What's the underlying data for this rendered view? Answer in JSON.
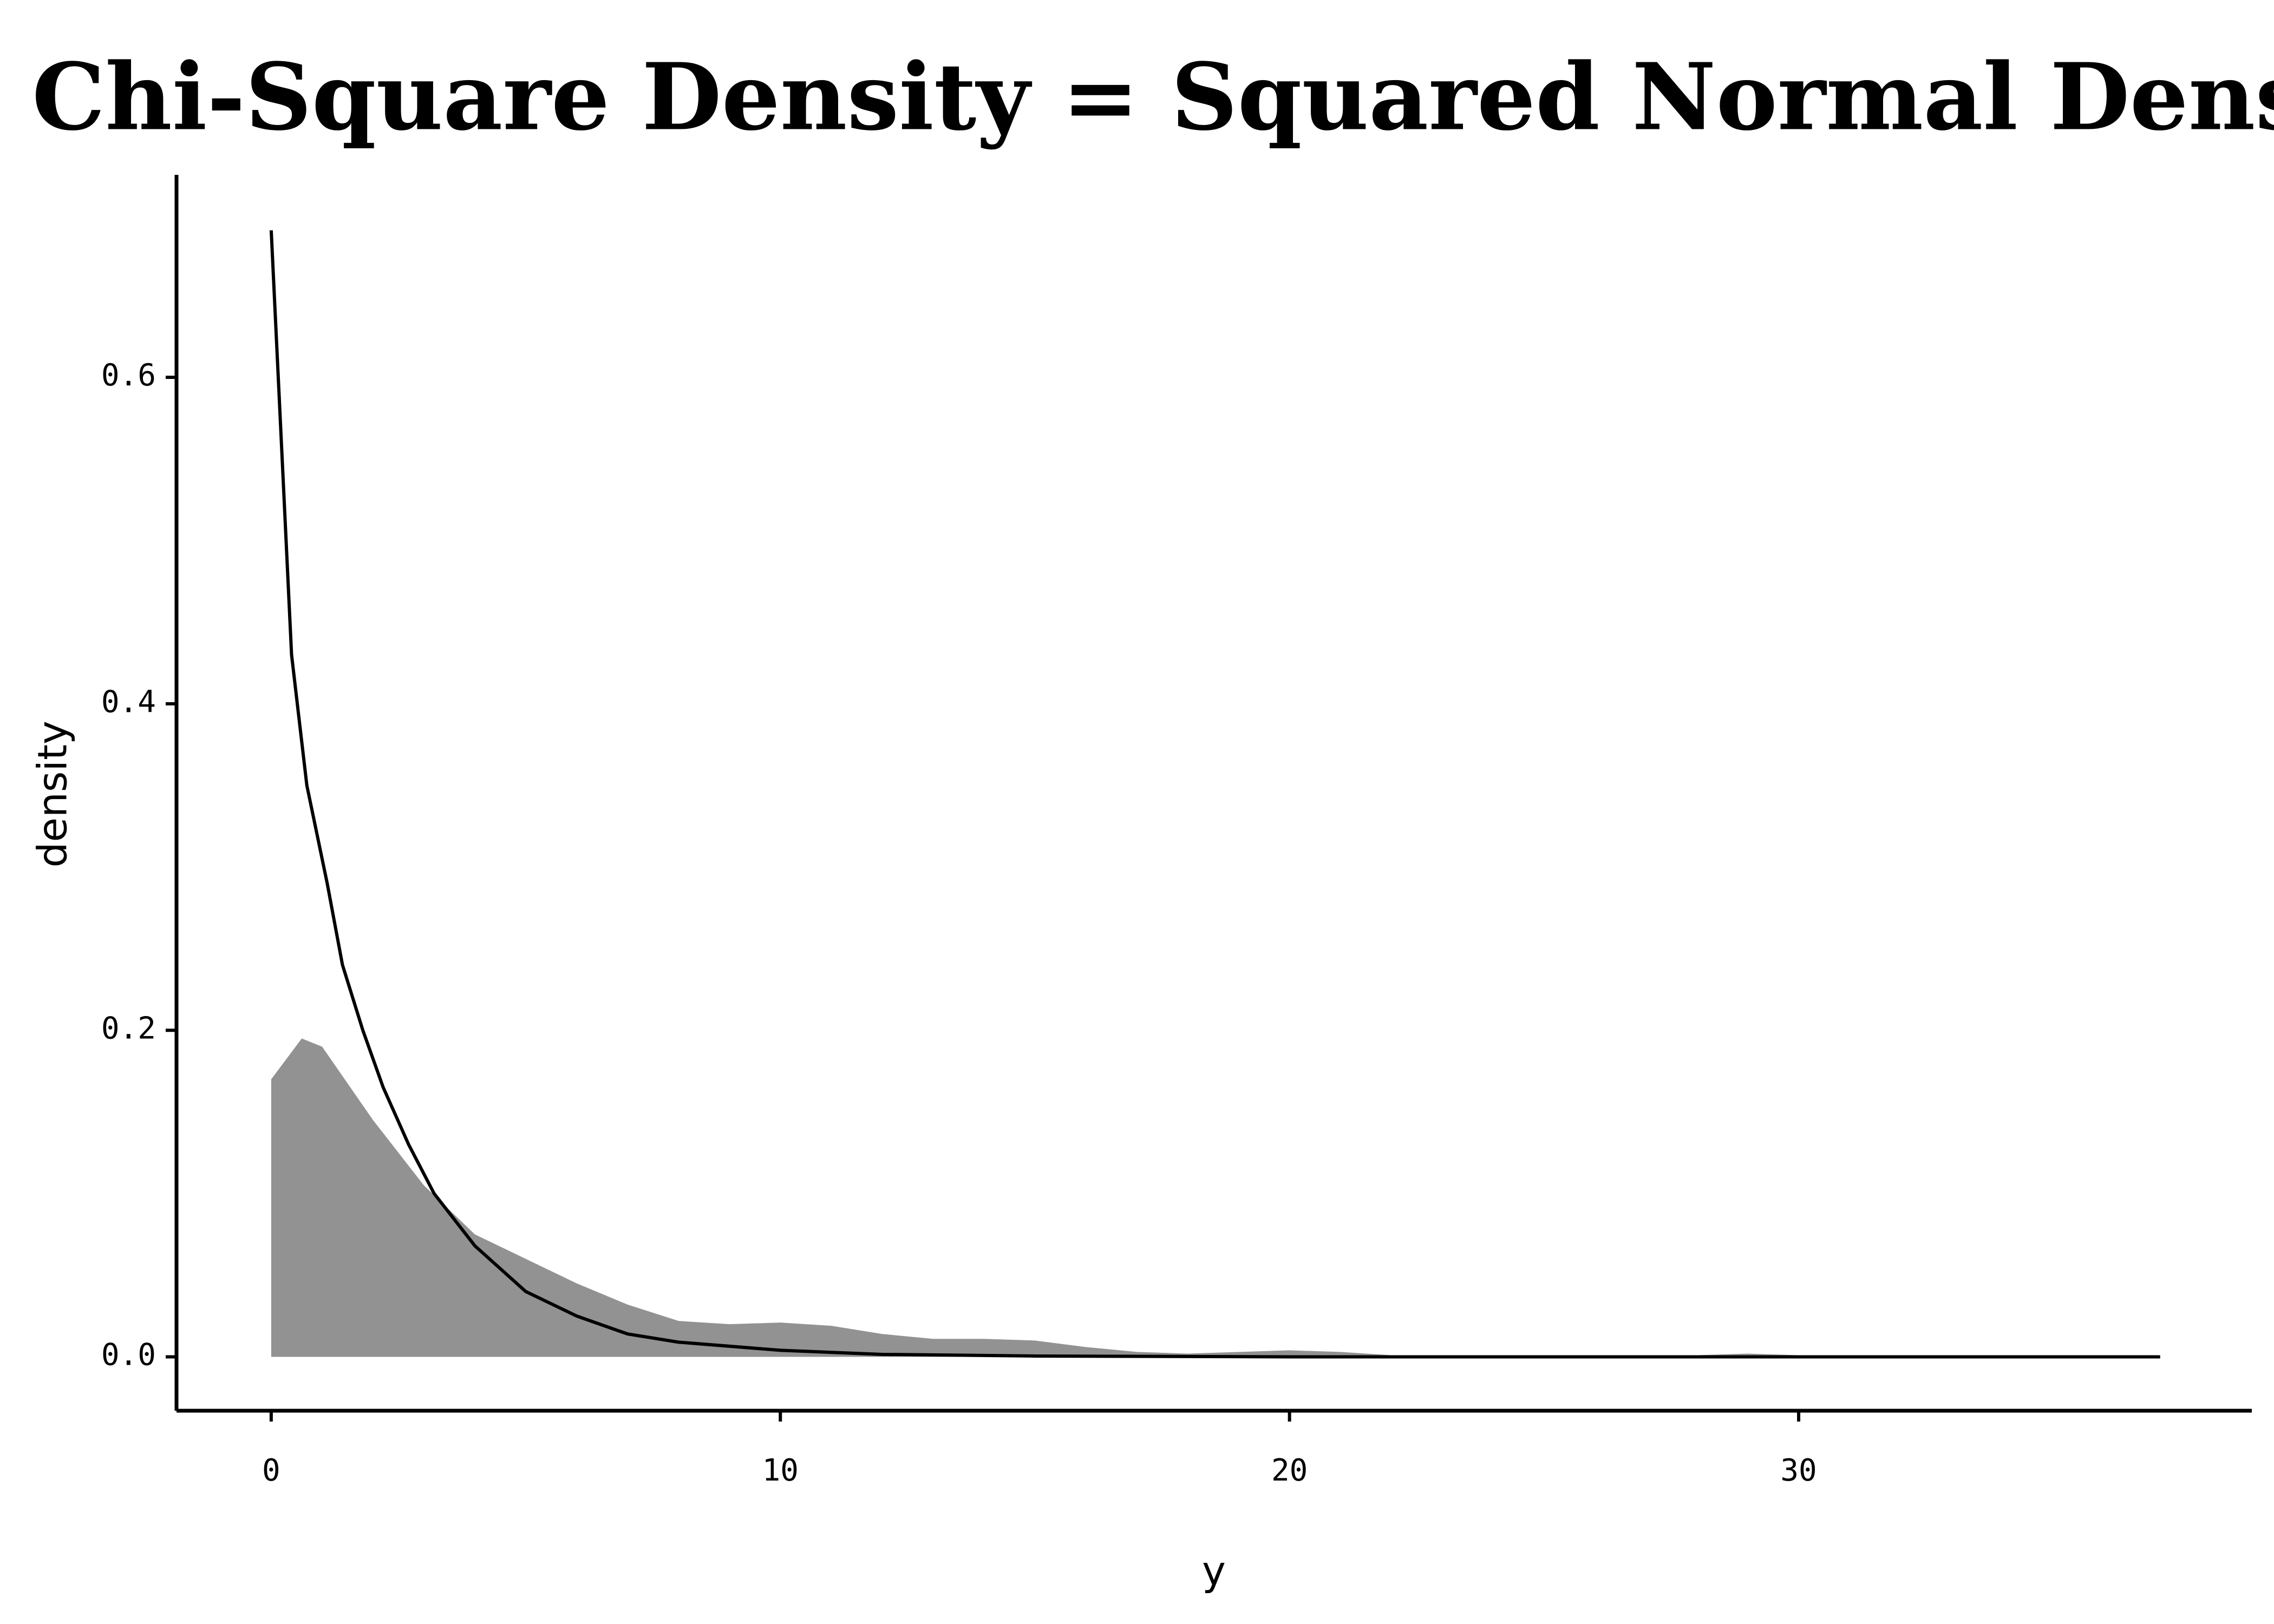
{
  "chart_data": {
    "type": "line",
    "title": "Chi-Square Density = Squared Normal Density",
    "xlabel": "y",
    "ylabel": "density",
    "xlim": [
      -1.86,
      38.9
    ],
    "ylim": [
      -0.033,
      0.724
    ],
    "xticks": [
      0,
      10,
      20,
      30
    ],
    "yticks": [
      {
        "value": 0,
        "label": "0.0"
      },
      0.2,
      0.4,
      0.6
    ],
    "grid": false,
    "series": [
      {
        "type": "area",
        "color": "#929292",
        "x": [
          0,
          0.6,
          1,
          2,
          3,
          4,
          5,
          6,
          7,
          8,
          9,
          10,
          11,
          12,
          13,
          14,
          15,
          16,
          17,
          18,
          20,
          21,
          22,
          24,
          28,
          29,
          30,
          32,
          37.1
        ],
        "values": [
          0.17,
          0.195,
          0.19,
          0.145,
          0.105,
          0.075,
          0.06,
          0.045,
          0.032,
          0.022,
          0.02,
          0.021,
          0.019,
          0.014,
          0.011,
          0.011,
          0.01,
          0.006,
          0.003,
          0.002,
          0.004,
          0.003,
          0.001,
          0,
          0.001,
          0.002,
          0.001,
          0,
          0
        ]
      },
      {
        "type": "line",
        "color": "#000000",
        "x": [
          0,
          0.4,
          0.7,
          1.1,
          1.4,
          1.8,
          2.2,
          2.7,
          3.2,
          4,
          5,
          6,
          7,
          8,
          10,
          12,
          15,
          20,
          25,
          30,
          37.1
        ],
        "values": [
          0.69,
          0.43,
          0.35,
          0.29,
          0.24,
          0.2,
          0.165,
          0.13,
          0.1,
          0.068,
          0.04,
          0.025,
          0.014,
          0.009,
          0.004,
          0.0015,
          0.0005,
          0,
          0,
          0,
          0
        ]
      }
    ]
  }
}
